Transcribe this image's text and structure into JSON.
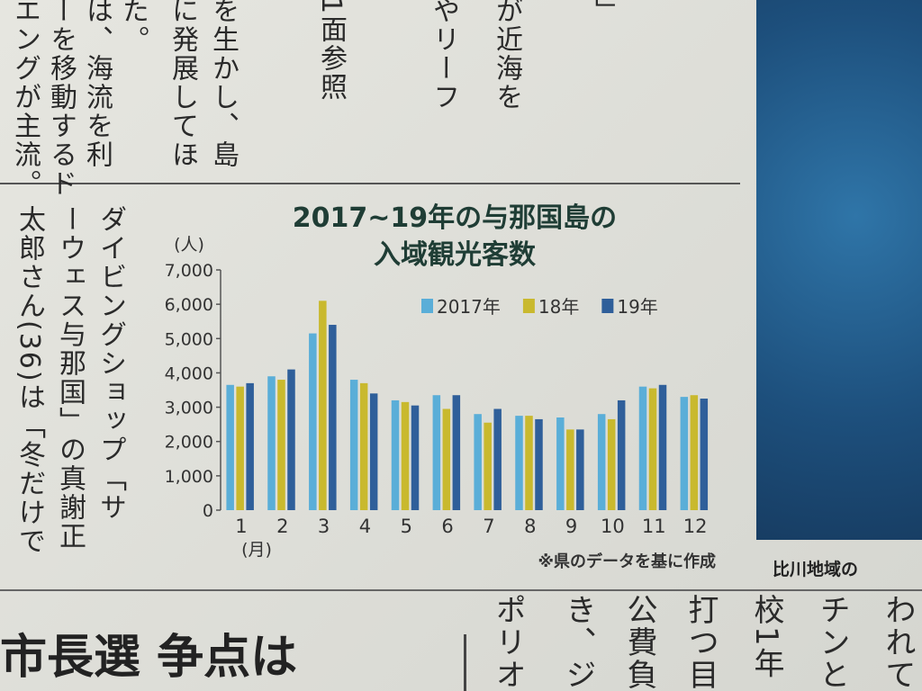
{
  "chart_data": {
    "type": "bar",
    "title": [
      "2017~19年の与那国島の",
      "入域観光客数"
    ],
    "y_unit": "(人)",
    "x_unit": "(月)",
    "note": "※県のデータを基に作成",
    "categories": [
      "1",
      "2",
      "3",
      "4",
      "5",
      "6",
      "7",
      "8",
      "9",
      "10",
      "11",
      "12"
    ],
    "series": [
      {
        "name": "2017年",
        "color": "#5aaed8",
        "values": [
          3650,
          3900,
          5150,
          3800,
          3200,
          3350,
          2800,
          2750,
          2700,
          2800,
          3600,
          3300
        ]
      },
      {
        "name": "18年",
        "color": "#c9b92e",
        "values": [
          3600,
          3800,
          6100,
          3700,
          3150,
          2950,
          2550,
          2750,
          2350,
          2650,
          3550,
          3350
        ]
      },
      {
        "name": "19年",
        "color": "#2f5f9a",
        "values": [
          3700,
          4100,
          5400,
          3400,
          3050,
          3350,
          2950,
          2650,
          2350,
          3200,
          3650,
          3250
        ]
      }
    ],
    "ylim": [
      0,
      7000
    ],
    "yticks": [
      0,
      {
        "value": 1000,
        "label": "1,000"
      },
      {
        "value": 2000,
        "label": "2,000"
      },
      {
        "value": 3000,
        "label": "3,000"
      },
      {
        "value": 4000,
        "label": "4,000"
      },
      {
        "value": 5000,
        "label": "5,000"
      },
      {
        "value": 6000,
        "label": "6,000"
      },
      {
        "value": 7000,
        "label": "7,000"
      }
    ],
    "legend": "top-right",
    "grid": false
  },
  "article": {
    "top_columns": [
      "エングが主流。",
      "ーを移動するド",
      "は、海流を利",
      "た。",
      "に発展してほ",
      "を生かし、島",
      "1面参照",
      "やリーフ",
      "が近海を",
      "」"
    ],
    "left_columns": [
      "太郎さん(36)は「冬だけで",
      "ーウェス与那国」の真謝正",
      "ダイビングショップ「サ"
    ],
    "headline": "市長選 争点は",
    "bottom_columns": [
      "ポリオ",
      "き、ジ",
      "公費負",
      "打つ目",
      "校1年",
      "チンと",
      "われて"
    ],
    "photo_caption": "比川地域の"
  }
}
